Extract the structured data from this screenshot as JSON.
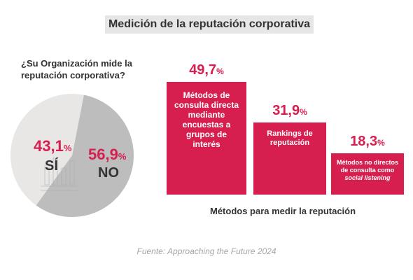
{
  "title": "Medición de la reputación corporativa",
  "source": "Fuente: Approaching the Future 2024",
  "colors": {
    "accent": "#d61f4f",
    "pie_si": "#e9e6e6",
    "pie_no": "#bdbdbd",
    "text": "#333333"
  },
  "chart_data": [
    {
      "type": "pie",
      "title": "¿Su Organización mide la reputación corporativa?",
      "slices": [
        {
          "label": "SÍ",
          "value": 43.1,
          "display": "43,1%",
          "color": "#e9e6e6"
        },
        {
          "label": "NO",
          "value": 56.9,
          "display": "56,9%",
          "color": "#bdbdbd"
        }
      ]
    },
    {
      "type": "bar",
      "xlabel": "Métodos para medir la reputación",
      "ylim": [
        0,
        60
      ],
      "categories": [
        "Métodos de consulta directa mediante encuestas a grupos de interés",
        "Rankings de reputación",
        "Métodos no directos de consulta como social listening"
      ],
      "values": [
        49.7,
        31.9,
        18.3
      ],
      "value_labels": [
        "49,7%",
        "31,9%",
        "18,3%"
      ],
      "bar_texts": [
        "Métodos de\nconsulta directa\nmediante\nencuestas a\ngrupos de\ninterés",
        "Rankings de\nreputación",
        "Métodos no directos\nde consulta como\nsocial listening"
      ]
    }
  ]
}
